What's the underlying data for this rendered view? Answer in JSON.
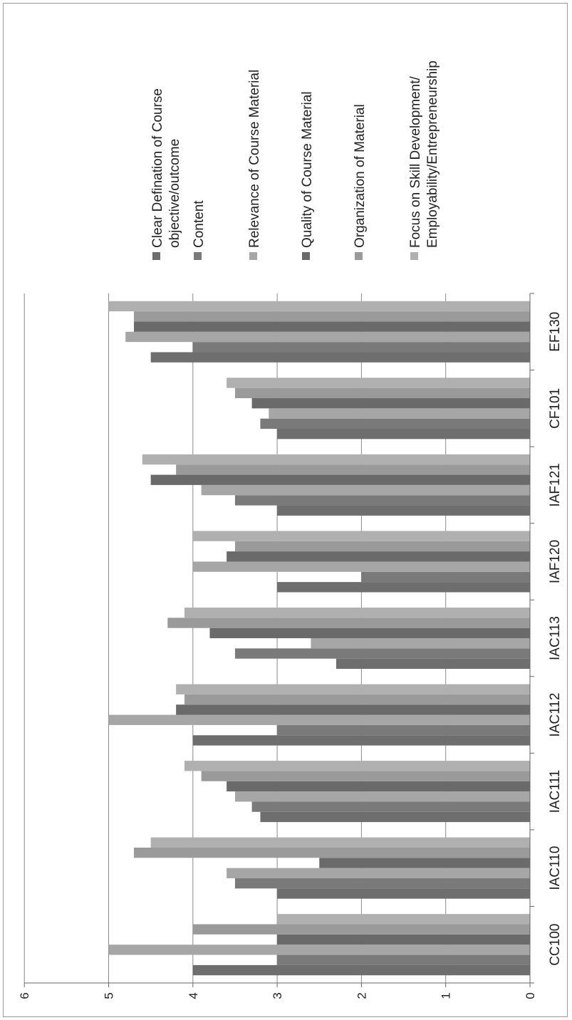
{
  "chart_data": {
    "type": "bar",
    "orientation": "vertical (figure rotated 90° on the page)",
    "categories": [
      "CC100",
      "IAC110",
      "IAC111",
      "IAC112",
      "IAC113",
      "IAF120",
      "IAF121",
      "CF101",
      "EF130"
    ],
    "ylim": [
      0,
      6
    ],
    "yticks": [
      "0",
      "1",
      "2",
      "3",
      "4",
      "5",
      "6"
    ],
    "grid": true,
    "legend_position": "right",
    "series": [
      {
        "name": "Clear Defination of Course objective/outcome",
        "color": "#6e6e6e",
        "values": [
          4,
          3,
          3.2,
          4,
          2.3,
          3,
          3,
          3,
          4.5
        ]
      },
      {
        "name": "Content",
        "color": "#7a7a7a",
        "values": [
          3,
          3.5,
          3.3,
          3,
          3.5,
          2,
          3.5,
          3.2,
          4
        ]
      },
      {
        "name": "Relevance of Course Material",
        "color": "#a6a6a6",
        "values": [
          5,
          3.6,
          3.5,
          5,
          2.6,
          4,
          3.9,
          3.1,
          4.8
        ]
      },
      {
        "name": "Quality of Course Material",
        "color": "#6a6a6a",
        "values": [
          3,
          2.5,
          3.6,
          4.2,
          3.8,
          3.6,
          4.5,
          3.3,
          4.7
        ]
      },
      {
        "name": "Organization of Material",
        "color": "#9a9a9a",
        "values": [
          4,
          4.7,
          3.9,
          4.1,
          4.3,
          3.5,
          4.2,
          3.5,
          4.7
        ]
      },
      {
        "name": "Focus on Skill Development/ Employability/Entrepreneurship",
        "color": "#b0b0b0",
        "values": [
          3,
          4.5,
          4.1,
          4.2,
          4.1,
          4,
          4.6,
          3.6,
          5
        ]
      }
    ],
    "legend_lines": [
      [
        "Clear Defination of Course",
        "objective/outcome"
      ],
      [
        "Content"
      ],
      [
        "Relevance of Course Material"
      ],
      [
        "Quality of Course Material"
      ],
      [
        "Organization of Material"
      ],
      [
        "Focus on Skill Development/",
        "Employability/Entrepreneurship"
      ]
    ]
  }
}
